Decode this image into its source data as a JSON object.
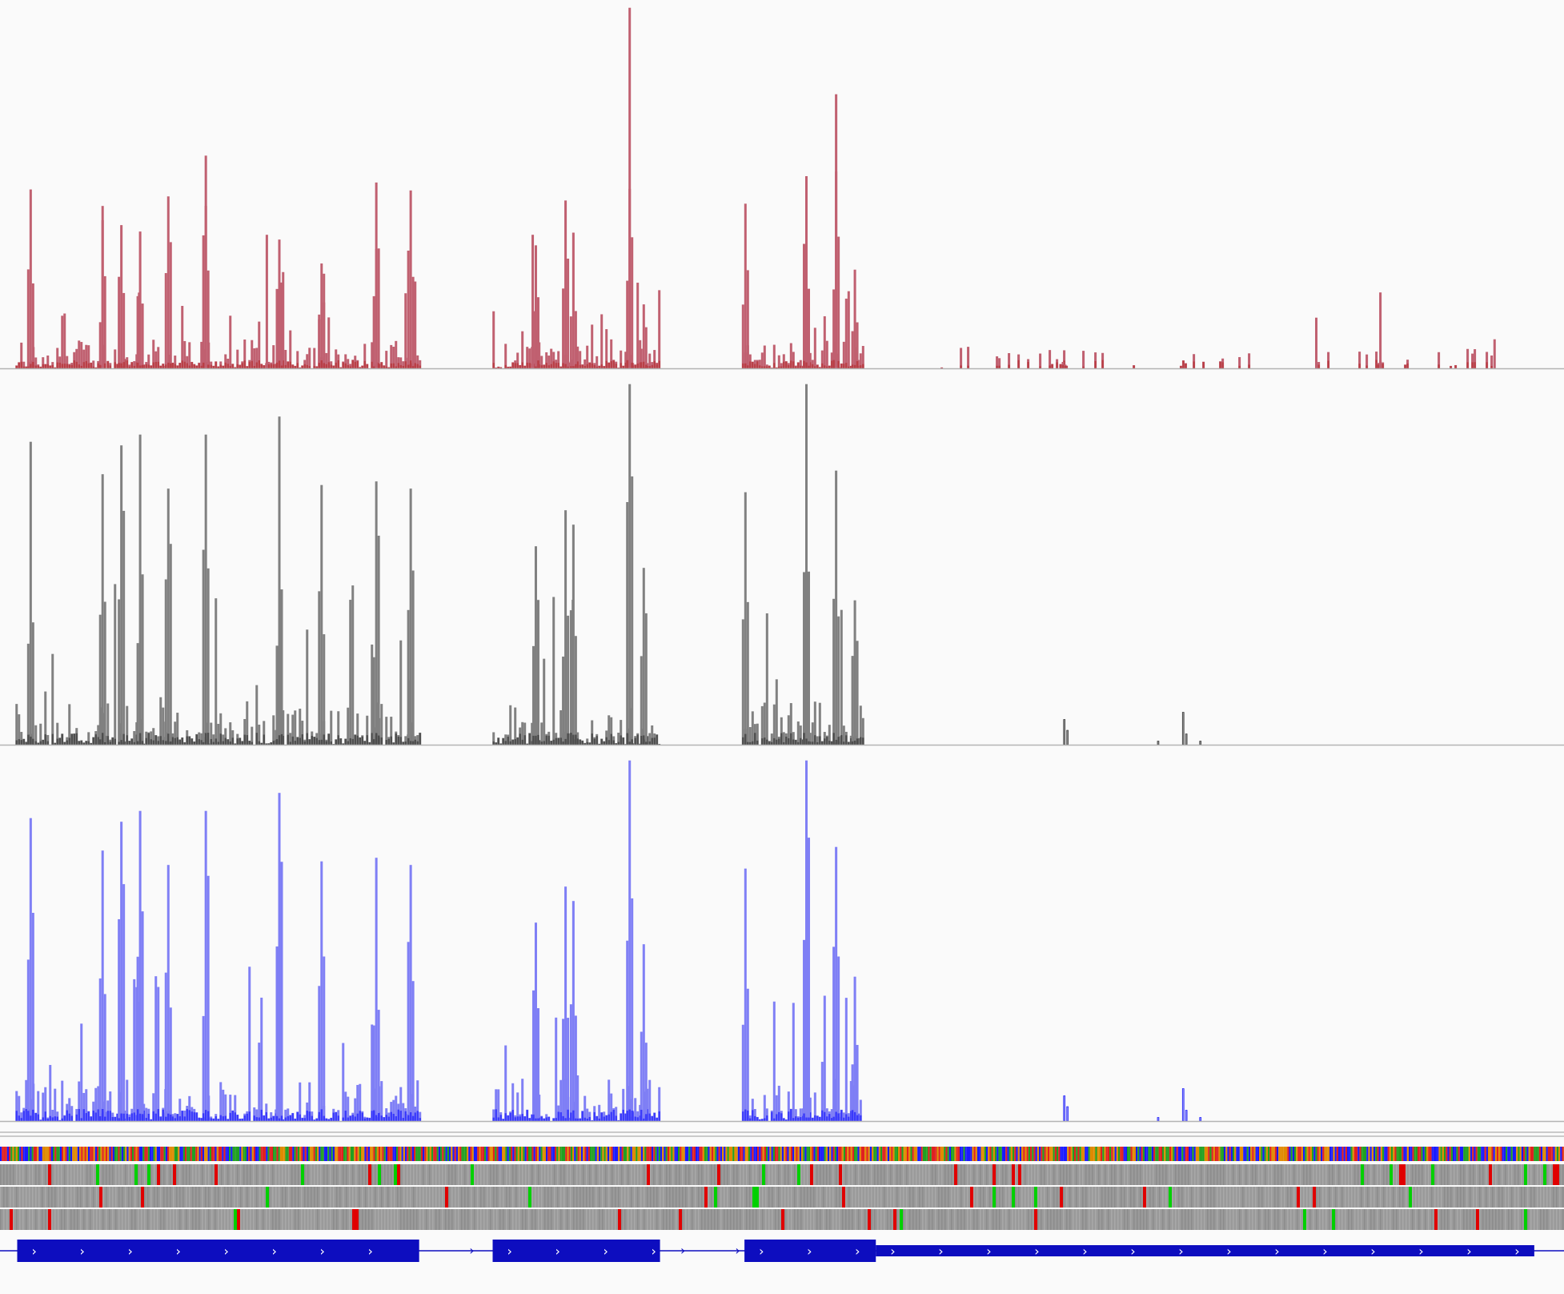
{
  "viewer": {
    "background": "#fafafa",
    "axis_color": "#b4b4b4"
  },
  "tracks": [
    {
      "name": "coverage-track-red",
      "color": "#b22222",
      "fill_color": "#c06070"
    },
    {
      "name": "coverage-track-black",
      "color": "#222222",
      "fill_color": "#808080"
    },
    {
      "name": "coverage-track-blue",
      "color": "#0000ff",
      "fill_color": "#7f7ff5"
    }
  ],
  "sequence_track": {
    "name": "sequence-track",
    "base_colors": [
      "#e02020",
      "#20a020",
      "#1a1aff",
      "#e08a00"
    ],
    "frame_rows": 3,
    "frame_base_color": "#9a9a9a",
    "stop_codon_color": "#e00000",
    "start_codon_color": "#00d000"
  },
  "gene_track": {
    "name": "gene-track",
    "color": "#0d0dbf",
    "strand_glyph": "›",
    "strand": "+"
  },
  "chart_data": {
    "type": "bar",
    "title": "",
    "xlabel": "",
    "ylabel": "",
    "series": [
      {
        "color": "#b22222",
        "ylim": [
          0,
          100
        ]
      },
      {
        "color": "#222222",
        "ylim": [
          0,
          100
        ]
      },
      {
        "color": "#0000ff",
        "ylim": [
          0,
          100
        ]
      }
    ],
    "coverage_blocks": [
      {
        "start": 0.01,
        "end": 0.269,
        "peaks": [
          {
            "x": 0.019,
            "v": 84
          },
          {
            "x": 0.065,
            "v": 75
          },
          {
            "x": 0.077,
            "v": 83
          },
          {
            "x": 0.089,
            "v": 86
          },
          {
            "x": 0.107,
            "v": 71
          },
          {
            "x": 0.131,
            "v": 86
          },
          {
            "x": 0.178,
            "v": 91
          },
          {
            "x": 0.205,
            "v": 72
          },
          {
            "x": 0.24,
            "v": 73
          },
          {
            "x": 0.262,
            "v": 71
          }
        ]
      },
      {
        "start": 0.315,
        "end": 0.421,
        "peaks": [
          {
            "x": 0.342,
            "v": 55
          },
          {
            "x": 0.361,
            "v": 65
          },
          {
            "x": 0.366,
            "v": 61
          },
          {
            "x": 0.402,
            "v": 100
          },
          {
            "x": 0.411,
            "v": 49
          }
        ]
      },
      {
        "start": 0.476,
        "end": 0.552,
        "peaks": [
          {
            "x": 0.476,
            "v": 70
          },
          {
            "x": 0.515,
            "v": 100
          },
          {
            "x": 0.534,
            "v": 76
          },
          {
            "x": 0.546,
            "v": 40
          }
        ]
      },
      {
        "start": 0.6,
        "end": 0.955,
        "peaks": [
          {
            "x": 0.679,
            "v": 3
          },
          {
            "x": 0.756,
            "v": 4
          },
          {
            "x": 0.882,
            "v": 4
          }
        ]
      }
    ],
    "gene_exons": [
      {
        "start": 0.011,
        "end": 0.268,
        "height": "full"
      },
      {
        "start": 0.315,
        "end": 0.422,
        "height": "full"
      },
      {
        "start": 0.476,
        "end": 0.56,
        "height": "full"
      },
      {
        "start": 0.56,
        "end": 0.981,
        "height": "thin"
      }
    ]
  }
}
